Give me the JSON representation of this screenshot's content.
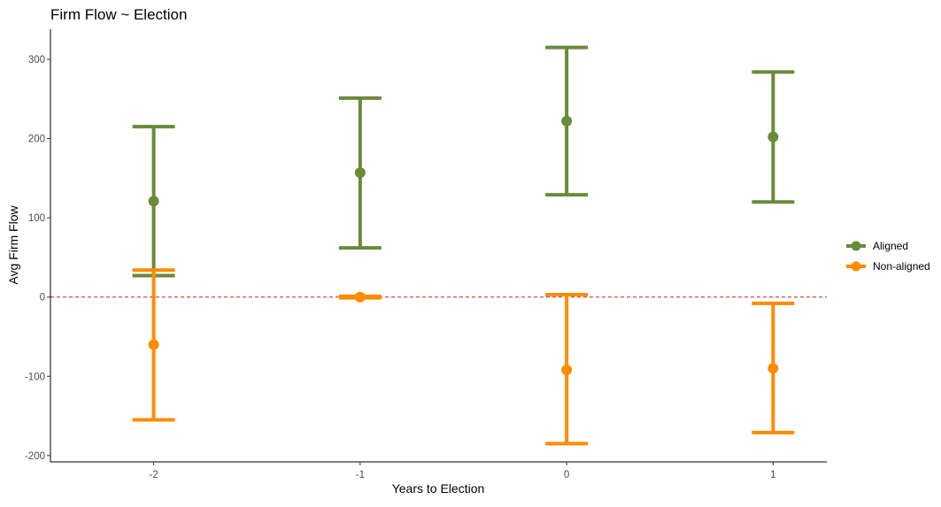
{
  "chart_data": {
    "type": "errorbar",
    "title": "Firm Flow ~ Election",
    "xlabel": "Years to Election",
    "ylabel": "Avg Firm Flow",
    "x_ticks": [
      "-2",
      "-1",
      "0",
      "1"
    ],
    "y_ticks": [
      "-200",
      "-100",
      "0",
      "100",
      "200",
      "300"
    ],
    "xlim": [
      -2.5,
      1.26
    ],
    "ylim": [
      -208,
      338
    ],
    "reference_line": {
      "y": 0,
      "style": "dashed",
      "color": "#cc2222"
    },
    "legend_position": "right",
    "series": [
      {
        "name": "Aligned",
        "color": "#6b8a3a",
        "points": [
          {
            "x": -2,
            "y": 121,
            "low": 27,
            "high": 215
          },
          {
            "x": -1,
            "y": 157,
            "low": 62,
            "high": 251
          },
          {
            "x": 0,
            "y": 222,
            "low": 129,
            "high": 315
          },
          {
            "x": 1,
            "y": 202,
            "low": 120,
            "high": 284
          }
        ]
      },
      {
        "name": "Non-aligned",
        "color": "#ff8c00",
        "points": [
          {
            "x": -2,
            "y": -60,
            "low": -155,
            "high": 34
          },
          {
            "x": -1,
            "y": 0,
            "low": -1,
            "high": 1
          },
          {
            "x": 0,
            "y": -92,
            "low": -185,
            "high": 3
          },
          {
            "x": 1,
            "y": -90,
            "low": -171,
            "high": -8
          }
        ]
      }
    ]
  }
}
